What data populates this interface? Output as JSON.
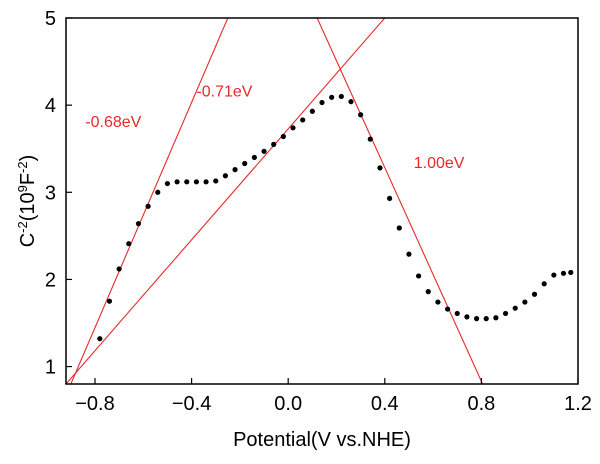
{
  "chart_data": {
    "type": "scatter",
    "title": "",
    "xlabel": "Potential(V vs.NHE)",
    "ylabel": {
      "base": "C",
      "exp1": "-2",
      "mid": "(10",
      "exp2": "9",
      "mid2": "F",
      "exp3": "-2",
      "end": ")"
    },
    "xlim": [
      -0.92,
      1.2
    ],
    "ylim": [
      0.8,
      5.0
    ],
    "xticks": [
      -0.8,
      -0.4,
      0.0,
      0.4,
      0.8,
      1.2
    ],
    "xtick_labels": [
      "−0.8",
      "−0.4",
      "0.0",
      "0.4",
      "0.8",
      "1.2"
    ],
    "yticks": [
      1,
      2,
      3,
      4,
      5
    ],
    "ytick_labels": [
      "1",
      "2",
      "3",
      "4",
      "5"
    ],
    "grid": false,
    "legend": "none",
    "series": [
      {
        "color": "#000000",
        "x": [
          -0.78,
          -0.74,
          -0.7,
          -0.66,
          -0.62,
          -0.58,
          -0.54,
          -0.5,
          -0.46,
          -0.42,
          -0.38,
          -0.34,
          -0.3,
          -0.26,
          -0.22,
          -0.18,
          -0.14,
          -0.1,
          -0.06,
          -0.02,
          0.02,
          0.06,
          0.1,
          0.14,
          0.18,
          0.22,
          0.26,
          0.3,
          0.34,
          0.38,
          0.42,
          0.46,
          0.5,
          0.54,
          0.58,
          0.62,
          0.66,
          0.7,
          0.74,
          0.78,
          0.82,
          0.86,
          0.9,
          0.94,
          0.98,
          1.02,
          1.06,
          1.1,
          1.14,
          1.17
        ],
        "y": [
          1.32,
          1.75,
          2.12,
          2.41,
          2.64,
          2.84,
          3.0,
          3.1,
          3.12,
          3.12,
          3.12,
          3.12,
          3.13,
          3.19,
          3.26,
          3.33,
          3.4,
          3.47,
          3.55,
          3.64,
          3.74,
          3.83,
          3.93,
          4.03,
          4.09,
          4.1,
          4.04,
          3.89,
          3.61,
          3.28,
          2.93,
          2.59,
          2.29,
          2.04,
          1.86,
          1.74,
          1.66,
          1.61,
          1.57,
          1.55,
          1.55,
          1.56,
          1.61,
          1.67,
          1.74,
          1.83,
          1.95,
          2.05,
          2.07,
          2.08
        ]
      }
    ],
    "fit_lines": [
      {
        "color": "#e8282a",
        "points": [
          [
            -0.9,
            0.8
          ],
          [
            -0.25,
            5.0
          ]
        ]
      },
      {
        "color": "#e8282a",
        "points": [
          [
            -0.92,
            0.8
          ],
          [
            0.4,
            5.0
          ]
        ]
      },
      {
        "color": "#e8282a",
        "points": [
          [
            0.12,
            5.0
          ],
          [
            0.805,
            0.8
          ]
        ]
      }
    ],
    "annotations": [
      {
        "text": "-0.68eV",
        "x": -0.84,
        "y": 3.75,
        "color": "#e8282a"
      },
      {
        "text": "-0.71eV",
        "x": -0.38,
        "y": 4.1,
        "color": "#e8282a"
      },
      {
        "text": "1.00eV",
        "x": 0.52,
        "y": 3.28,
        "color": "#e8282a"
      }
    ]
  }
}
